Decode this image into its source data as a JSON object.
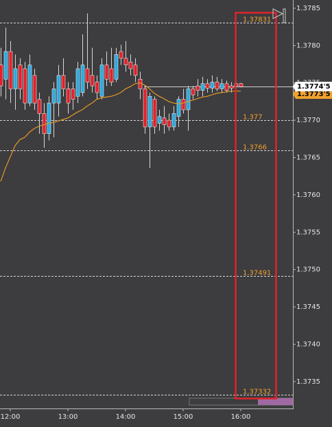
{
  "chart_data": {
    "type": "candlestick",
    "x": [
      710,
      715,
      720,
      725,
      730,
      735,
      740,
      745,
      750,
      755,
      760,
      765,
      770,
      775,
      780,
      785,
      790,
      795,
      800,
      805,
      810,
      815,
      820,
      825,
      830,
      835,
      840,
      845,
      850,
      855,
      860,
      865,
      870,
      875,
      880,
      885,
      890,
      895,
      900,
      905,
      910,
      915,
      920,
      925,
      930,
      935,
      940,
      945,
      950,
      955,
      960
    ],
    "open": [
      1.37774,
      1.37755,
      1.37792,
      1.37742,
      1.37774,
      1.37769,
      1.37723,
      1.3776,
      1.37728,
      1.37709,
      1.37682,
      1.37723,
      1.37723,
      1.3776,
      1.37742,
      1.37742,
      1.37732,
      1.37737,
      1.37769,
      1.3776,
      1.37751,
      1.37732,
      1.37774,
      1.37769,
      1.37755,
      1.37792,
      1.37783,
      1.37778,
      1.37774,
      1.37755,
      1.37742,
      1.37691,
      1.37728,
      1.37696,
      1.37703,
      1.377,
      1.37691,
      1.37705,
      1.37728,
      1.37714,
      1.37742,
      1.37746,
      1.3774,
      1.37749,
      1.37743,
      1.37751,
      1.37742,
      1.37749,
      1.37746,
      1.37749,
      1.37749
    ],
    "high": [
      1.37797,
      1.37824,
      1.37806,
      1.37788,
      1.37783,
      1.37778,
      1.37788,
      1.37769,
      1.37737,
      1.37723,
      1.37732,
      1.37751,
      1.37774,
      1.37783,
      1.37751,
      1.37751,
      1.37778,
      1.37815,
      1.37843,
      1.37797,
      1.3776,
      1.37783,
      1.37792,
      1.37797,
      1.37797,
      1.37801,
      1.37806,
      1.37788,
      1.37783,
      1.37765,
      1.37746,
      1.37737,
      1.37732,
      1.37714,
      1.37719,
      1.37709,
      1.37719,
      1.37732,
      1.37742,
      1.37746,
      1.37746,
      1.37755,
      1.37758,
      1.37755,
      1.3776,
      1.37758,
      1.37755,
      1.37753,
      1.37751,
      1.37751,
      1.3775
    ],
    "low": [
      1.37732,
      1.37728,
      1.37723,
      1.37714,
      1.37728,
      1.37714,
      1.37719,
      1.37714,
      1.37682,
      1.37663,
      1.37673,
      1.37677,
      1.37705,
      1.37732,
      1.37709,
      1.37714,
      1.37723,
      1.37732,
      1.37742,
      1.37737,
      1.37728,
      1.37728,
      1.37746,
      1.37746,
      1.37751,
      1.37774,
      1.37765,
      1.3776,
      1.37751,
      1.37728,
      1.37682,
      1.37636,
      1.37682,
      1.37686,
      1.37682,
      1.37686,
      1.37686,
      1.37691,
      1.37709,
      1.37686,
      1.37728,
      1.37732,
      1.37732,
      1.37737,
      1.37737,
      1.37739,
      1.37737,
      1.37737,
      1.37737,
      1.37743,
      1.37744
    ],
    "close": [
      1.37746,
      1.37792,
      1.37742,
      1.37769,
      1.37742,
      1.37723,
      1.37774,
      1.37723,
      1.37709,
      1.37682,
      1.37723,
      1.37742,
      1.3776,
      1.37742,
      1.37723,
      1.37728,
      1.37769,
      1.37774,
      1.37751,
      1.37746,
      1.37737,
      1.37774,
      1.37755,
      1.37751,
      1.37788,
      1.37783,
      1.37774,
      1.37769,
      1.3776,
      1.37742,
      1.37691,
      1.37732,
      1.37691,
      1.37705,
      1.37694,
      1.37691,
      1.37709,
      1.37728,
      1.37714,
      1.37742,
      1.37734,
      1.3774,
      1.37749,
      1.37743,
      1.37751,
      1.37742,
      1.37749,
      1.3774,
      1.37743,
      1.37746,
      1.37745
    ],
    "up_color": "#2aa9e0",
    "down_color": "#e3202c",
    "ma": {
      "color": "#e39a26",
      "values": [
        1.37618,
        1.37636,
        1.37651,
        1.37666,
        1.37674,
        1.37677,
        1.37684,
        1.37689,
        1.37692,
        1.37694,
        1.37696,
        1.37697,
        1.37699,
        1.37701,
        1.37703,
        1.37707,
        1.37711,
        1.37714,
        1.37719,
        1.37723,
        1.37728,
        1.3773,
        1.37731,
        1.37732,
        1.37734,
        1.37737,
        1.37742,
        1.37745,
        1.37749,
        1.3775,
        1.37747,
        1.37742,
        1.37736,
        1.37732,
        1.37729,
        1.37725,
        1.37723,
        1.37722,
        1.37723,
        1.37725,
        1.37727,
        1.37729,
        1.37731,
        1.37732,
        1.37734,
        1.37736,
        1.37737,
        1.37738,
        1.37739,
        1.37739,
        1.37739
      ]
    },
    "levels": [
      1.37831,
      1.377,
      1.3766,
      1.37491,
      1.37332
    ],
    "level_color": "#f0a22e",
    "current_price": 1.37745,
    "price_tags": [
      {
        "value": 1.37735,
        "label": "1.3773'5",
        "color": "#f0a22e"
      },
      {
        "value": 1.37745,
        "label": "1.3774'5",
        "color": "#ffffff"
      }
    ],
    "xlim": [
      709.3,
      1014.3
    ],
    "ylim": [
      1.37314,
      1.37861
    ],
    "xticks": [
      {
        "value": 720,
        "label": "12:00"
      },
      {
        "value": 780,
        "label": "13:00"
      },
      {
        "value": 840,
        "label": "14:00"
      },
      {
        "value": 900,
        "label": "15:00"
      },
      {
        "value": 960,
        "label": "16:00"
      }
    ],
    "yticks": [
      1.3785,
      {
        "value": 1.378,
        "label": "1.3780"
      },
      1.3775,
      {
        "value": 1.377,
        "label": "1.3770"
      },
      1.3765,
      {
        "value": 1.376,
        "label": "1.3760"
      },
      1.3755,
      {
        "value": 1.375,
        "label": "1.3750"
      },
      1.3745,
      {
        "value": 1.374,
        "label": "1.3740"
      },
      1.3735
    ]
  }
}
